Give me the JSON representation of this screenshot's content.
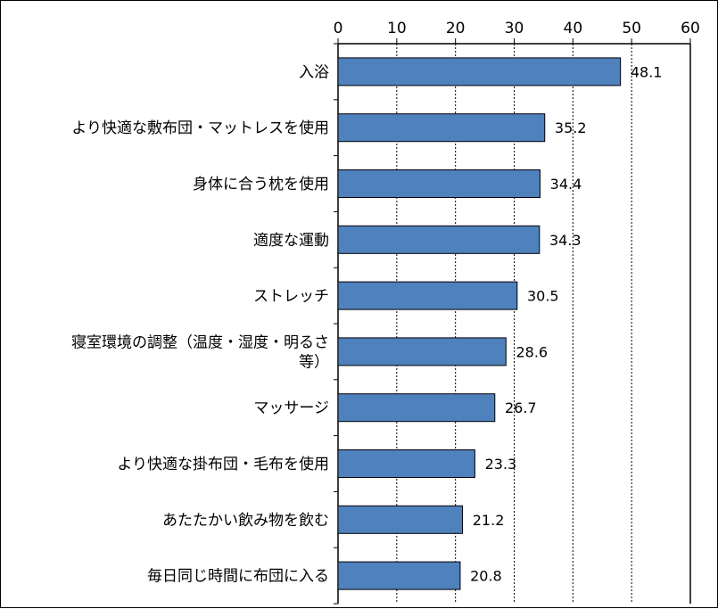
{
  "chart_data": {
    "type": "bar",
    "orientation": "horizontal",
    "categories": [
      "入浴",
      "より快適な敷布団・マットレスを使用",
      "身体に合う枕を使用",
      "適度な運動",
      "ストレッチ",
      "寝室環境の調整（温度・湿度・明るさ等）",
      "マッサージ",
      "より快適な掛布団・毛布を使用",
      "あたたかい飲み物を飲む",
      "毎日同じ時間に布団に入る"
    ],
    "category_lines": [
      [
        "入浴"
      ],
      [
        "より快適な敷布団・マットレスを使用"
      ],
      [
        "身体に合う枕を使用"
      ],
      [
        "適度な運動"
      ],
      [
        "ストレッチ"
      ],
      [
        "寝室環境の調整（温度・湿度・明るさ",
        "等）"
      ],
      [
        "マッサージ"
      ],
      [
        "より快適な掛布団・毛布を使用"
      ],
      [
        "あたたかい飲み物を飲む"
      ],
      [
        "毎日同じ時間に布団に入る"
      ]
    ],
    "values": [
      48.1,
      35.2,
      34.4,
      34.3,
      30.5,
      28.6,
      26.7,
      23.3,
      21.2,
      20.8
    ],
    "value_labels": [
      "48.1",
      "35.2",
      "34.4",
      "34.3",
      "30.5",
      "28.6",
      "26.7",
      "23.3",
      "21.2",
      "20.8"
    ],
    "xlim": [
      0,
      60
    ],
    "xticks": [
      0,
      10,
      20,
      30,
      40,
      50,
      60
    ],
    "xtick_labels": [
      "0",
      "10",
      "20",
      "30",
      "40",
      "50",
      "60"
    ],
    "axis_position": "top",
    "grid": "vertical dashed",
    "bar_color": "#4F81BD",
    "bar_edge_color": "#000000",
    "title": "",
    "xlabel": "",
    "ylabel": ""
  }
}
